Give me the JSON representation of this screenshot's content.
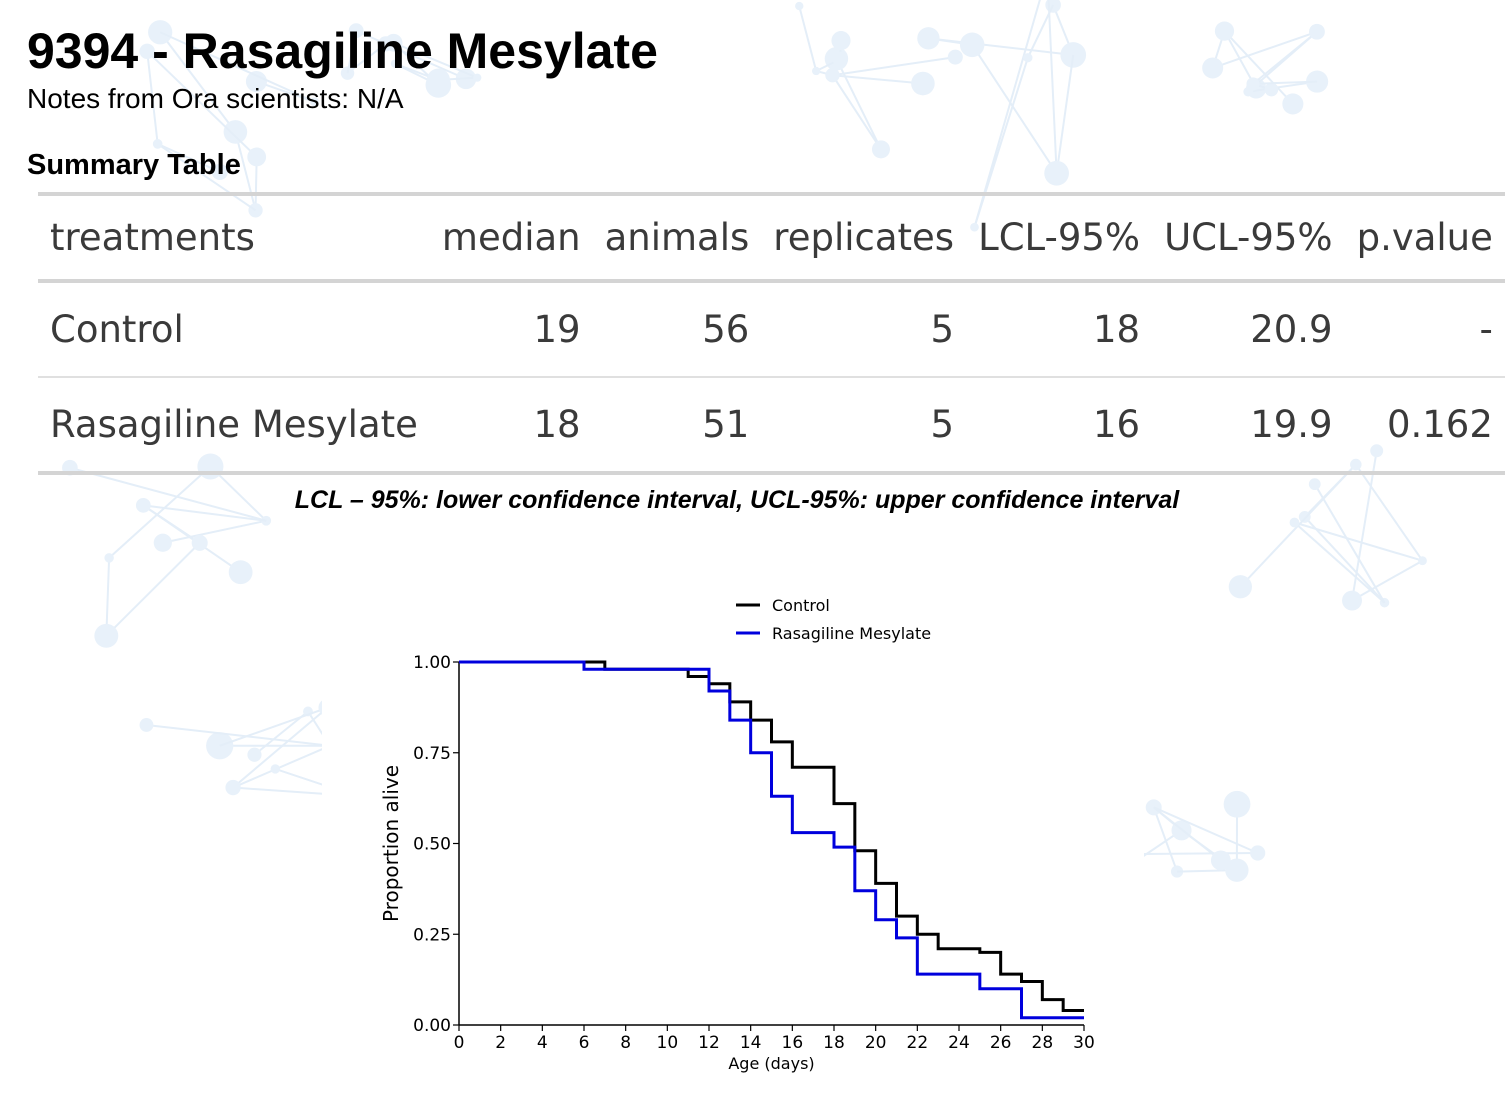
{
  "page": {
    "title": "9394 - Rasagiline Mesylate",
    "notes": "Notes from Ora scientists: N/A",
    "section_heading": "Summary Table",
    "caption": "LCL – 95%: lower confidence interval, UCL-95%: upper confidence interval"
  },
  "table": {
    "headers": [
      "treatments",
      "median",
      "animals",
      "replicates",
      "LCL-95%",
      "UCL-95%",
      "p.value"
    ],
    "rows": [
      [
        "Control",
        "19",
        "56",
        "5",
        "18",
        "20.9",
        "-"
      ],
      [
        "Rasagiline Mesylate",
        "18",
        "51",
        "5",
        "16",
        "19.9",
        "0.162"
      ]
    ]
  },
  "chart_data": {
    "type": "line",
    "step": true,
    "title": "",
    "xlabel": "Age (days)",
    "ylabel": "Proportion alive",
    "xlim": [
      0,
      30
    ],
    "ylim": [
      0,
      1
    ],
    "xticks": [
      0,
      2,
      4,
      6,
      8,
      10,
      12,
      14,
      16,
      18,
      20,
      22,
      24,
      26,
      28,
      30
    ],
    "yticks": [
      0,
      0.25,
      0.5,
      0.75,
      1.0
    ],
    "ytick_labels": [
      "0.00",
      "0.25",
      "0.50",
      "0.75",
      "1.00"
    ],
    "grid": false,
    "legend_position": "top-center",
    "series": [
      {
        "name": "Control",
        "color": "#000000",
        "x": [
          0,
          7,
          11,
          12,
          13,
          14,
          15,
          16,
          18,
          19,
          20,
          21,
          22,
          23,
          25,
          26,
          27,
          28,
          29,
          30
        ],
        "y": [
          1.0,
          0.98,
          0.96,
          0.94,
          0.89,
          0.84,
          0.78,
          0.71,
          0.61,
          0.48,
          0.39,
          0.3,
          0.25,
          0.21,
          0.2,
          0.14,
          0.12,
          0.07,
          0.04,
          0.04
        ]
      },
      {
        "name": "Rasagiline Mesylate",
        "color": "#0000dd",
        "x": [
          0,
          6,
          12,
          13,
          14,
          15,
          16,
          18,
          19,
          20,
          21,
          22,
          25,
          27,
          30
        ],
        "y": [
          1.0,
          0.98,
          0.92,
          0.84,
          0.75,
          0.63,
          0.53,
          0.49,
          0.37,
          0.29,
          0.24,
          0.14,
          0.1,
          0.02,
          0.02
        ]
      }
    ]
  }
}
